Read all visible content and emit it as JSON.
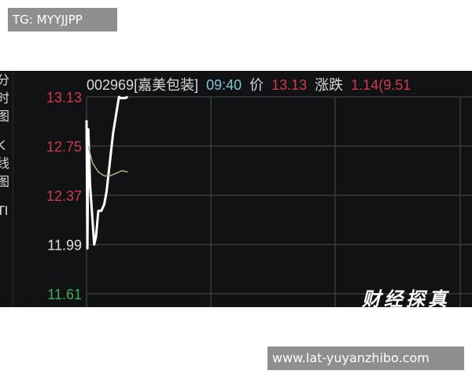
{
  "watermarks": {
    "top": "TG: MYYJJPP",
    "bottom": "www.lat-yuyanzhibo.com",
    "logo": "财经探真"
  },
  "sidebar": {
    "tabs": [
      "分时图",
      "K线图",
      "TI"
    ]
  },
  "header": {
    "code_name": "002969[嘉美包装]",
    "time": "09:40",
    "price_label": "价",
    "price": "13.13",
    "change_label": "涨跌",
    "change": "1.14(9.51"
  },
  "colors": {
    "background": "#111214",
    "grid": "#3a3b3e",
    "up": "#d2384f",
    "down": "#3fae5a",
    "price_line": "#ffffff",
    "avg_line": "#b8ad90"
  },
  "chart_data": {
    "type": "line",
    "title": "",
    "ylim": [
      11.61,
      13.13
    ],
    "grid": true,
    "y_ticks": [
      {
        "label": "13.13",
        "value": 13.13,
        "color": "#d2384f"
      },
      {
        "label": "12.75",
        "value": 12.75,
        "color": "#d2384f"
      },
      {
        "label": "12.37",
        "value": 12.37,
        "color": "#d2384f"
      },
      {
        "label": "11.99",
        "value": 11.99,
        "color": "#e0e0e0"
      },
      {
        "label": "11.61",
        "value": 11.61,
        "color": "#3fae5a"
      }
    ],
    "series": [
      {
        "x": [
          0,
          0.15,
          0.3,
          0.6,
          1.3,
          1.6,
          2.0,
          2.5,
          3.0,
          3.4,
          4.5,
          5.5,
          5.8,
          6.5,
          7.0
        ],
        "y": [
          12.95,
          11.96,
          12.88,
          12.45,
          11.99,
          12.05,
          12.25,
          12.25,
          12.3,
          12.4,
          12.85,
          13.13,
          13.12,
          13.12,
          13.13
        ]
      },
      {
        "x": [
          0.3,
          1.0,
          2.0,
          3.0,
          4.0,
          5.0,
          6.0,
          7.0
        ],
        "y": [
          12.75,
          12.62,
          12.55,
          12.52,
          12.52,
          12.54,
          12.56,
          12.55
        ]
      }
    ]
  }
}
